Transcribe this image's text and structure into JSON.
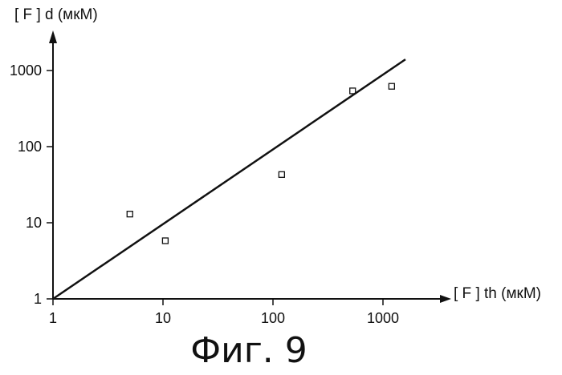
{
  "figure": {
    "caption": "Фиг. 9"
  },
  "chart_data": {
    "type": "scatter",
    "title": "",
    "xlabel": "[ F ] th (мкМ)",
    "ylabel": "[ F ] d (мкМ)",
    "x_scale": "log",
    "y_scale": "log",
    "xlim": [
      1,
      2000
    ],
    "ylim": [
      1,
      2000
    ],
    "x_ticks": [
      1,
      10,
      100,
      1000
    ],
    "y_ticks": [
      1,
      10,
      100,
      1000
    ],
    "x_tick_labels": [
      "1",
      "10",
      "100",
      "1000"
    ],
    "y_tick_labels": [
      "1",
      "10",
      "100",
      "1000"
    ],
    "grid": false,
    "legend": "none",
    "series": [
      {
        "type": "scatter",
        "marker": "open-square",
        "points": [
          {
            "x": 5,
            "y": 13
          },
          {
            "x": 10.5,
            "y": 5.8
          },
          {
            "x": 120,
            "y": 43
          },
          {
            "x": 530,
            "y": 540
          },
          {
            "x": 1200,
            "y": 620
          }
        ]
      },
      {
        "type": "line",
        "points": [
          {
            "x": 1,
            "y": 1
          },
          {
            "x": 1600,
            "y": 1400
          }
        ]
      }
    ],
    "colors": {
      "ink": "#111111"
    }
  }
}
